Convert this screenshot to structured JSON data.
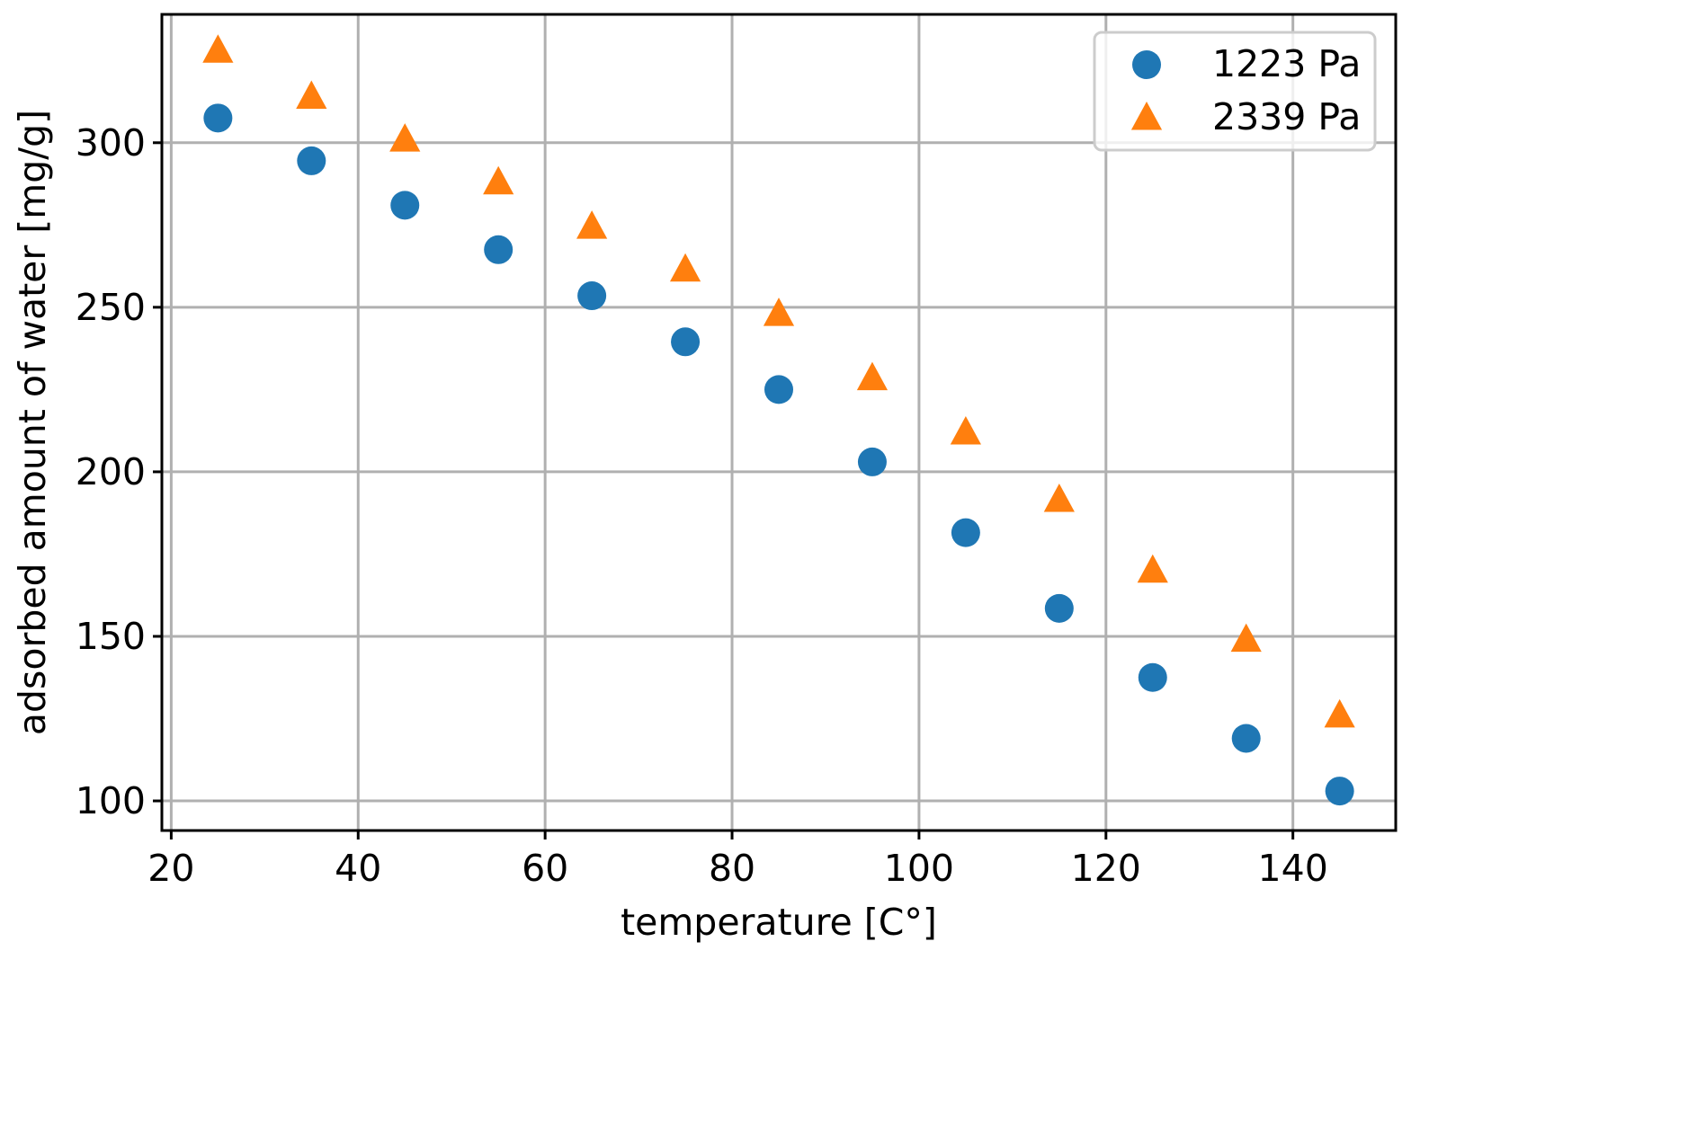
{
  "chart_data": {
    "type": "scatter",
    "xlabel": "temperature [C°]",
    "ylabel": "adsorbed amount of water [mg/g]",
    "xlim": [
      19,
      151
    ],
    "ylim": [
      91,
      339
    ],
    "xticks": [
      20,
      40,
      60,
      80,
      100,
      120,
      140
    ],
    "yticks": [
      100,
      150,
      200,
      250,
      300
    ],
    "grid": true,
    "legend_position": "top-right",
    "x": [
      25,
      35,
      45,
      55,
      65,
      75,
      85,
      95,
      105,
      115,
      125,
      135,
      145
    ],
    "series": [
      {
        "name": "1223 Pa",
        "marker": "circle",
        "color": "#1f77b4",
        "values": [
          307.5,
          294.5,
          281,
          267.5,
          253.5,
          239.5,
          225,
          203,
          181.5,
          158.5,
          137.5,
          119,
          103
        ]
      },
      {
        "name": "2339 Pa",
        "marker": "triangle",
        "color": "#ff7f0e",
        "values": [
          328,
          314,
          301,
          288,
          274.5,
          261.5,
          248,
          228.5,
          212,
          191.5,
          170,
          149,
          126
        ]
      }
    ]
  }
}
